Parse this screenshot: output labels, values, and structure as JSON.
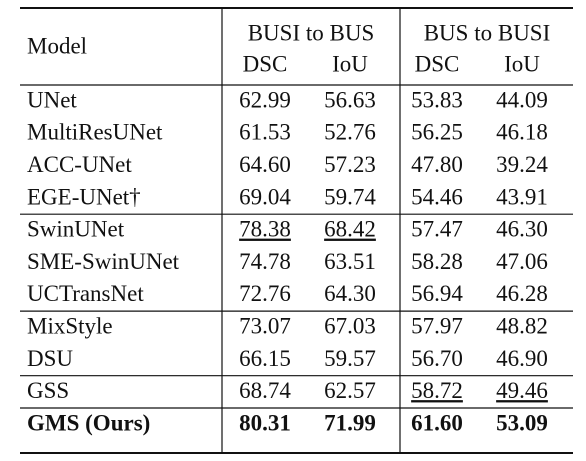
{
  "table": {
    "header": {
      "model": "Model",
      "groups": [
        "BUSI to BUS",
        "BUS to BUSI"
      ],
      "columns": [
        "DSC",
        "IoU",
        "DSC",
        "IoU"
      ]
    },
    "sections": [
      [
        {
          "model": "UNet",
          "values": [
            "62.99",
            "56.63",
            "53.83",
            "44.09"
          ]
        },
        {
          "model": "MultiResUNet",
          "values": [
            "61.53",
            "52.76",
            "56.25",
            "46.18"
          ]
        },
        {
          "model": "ACC-UNet",
          "values": [
            "64.60",
            "57.23",
            "47.80",
            "39.24"
          ]
        },
        {
          "model": "EGE-UNet†",
          "values": [
            "69.04",
            "59.74",
            "54.46",
            "43.91"
          ]
        }
      ],
      [
        {
          "model": "SwinUNet",
          "values": [
            "78.38",
            "68.42",
            "57.47",
            "46.30"
          ],
          "underline": [
            0,
            1
          ]
        },
        {
          "model": "SME-SwinUNet",
          "values": [
            "74.78",
            "63.51",
            "58.28",
            "47.06"
          ]
        },
        {
          "model": "UCTransNet",
          "values": [
            "72.76",
            "64.30",
            "56.94",
            "46.28"
          ]
        }
      ],
      [
        {
          "model": "MixStyle",
          "values": [
            "73.07",
            "67.03",
            "57.97",
            "48.82"
          ]
        },
        {
          "model": "DSU",
          "values": [
            "66.15",
            "59.57",
            "56.70",
            "46.90"
          ]
        }
      ],
      [
        {
          "model": "GSS",
          "values": [
            "68.74",
            "62.57",
            "58.72",
            "49.46"
          ],
          "underline": [
            2,
            3
          ]
        }
      ],
      [
        {
          "model": "GMS (Ours)",
          "values": [
            "80.31",
            "71.99",
            "61.60",
            "53.09"
          ],
          "bold": true
        }
      ]
    ]
  }
}
